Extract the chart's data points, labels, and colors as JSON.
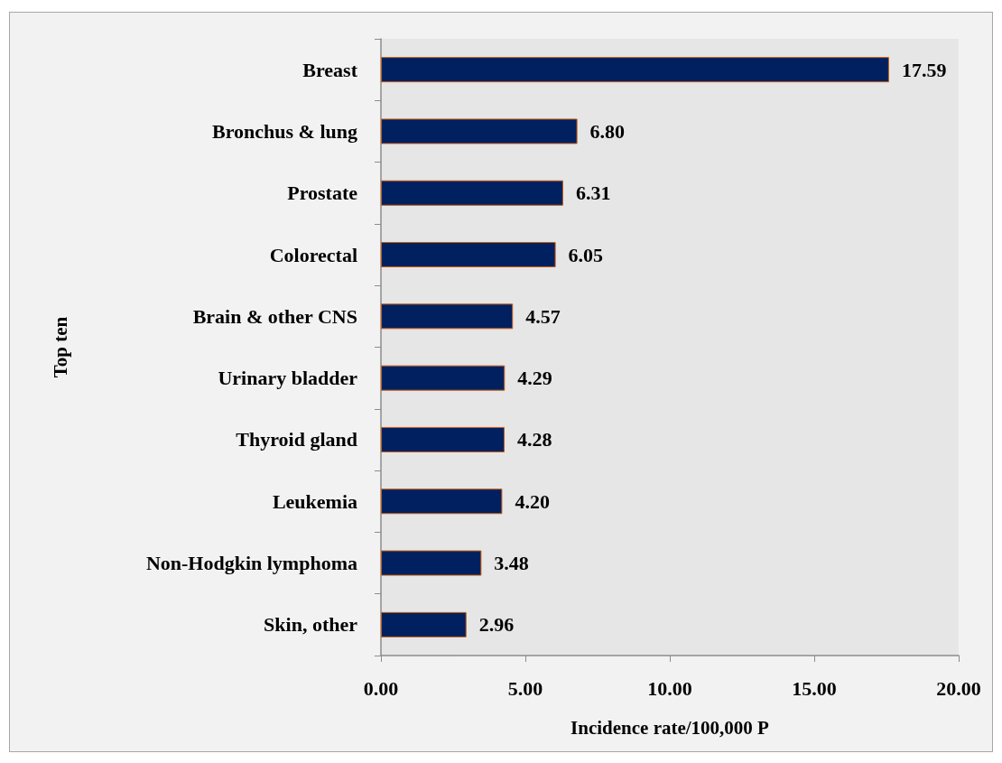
{
  "chart_data": {
    "type": "bar",
    "orientation": "horizontal",
    "categories": [
      "Breast",
      "Bronchus & lung",
      "Prostate",
      "Colorectal",
      "Brain & other CNS",
      "Urinary bladder",
      "Thyroid gland",
      "Leukemia",
      "Non-Hodgkin lymphoma",
      "Skin, other"
    ],
    "values": [
      17.59,
      6.8,
      6.31,
      6.05,
      4.57,
      4.29,
      4.28,
      4.2,
      3.48,
      2.96
    ],
    "value_labels": [
      "17.59",
      "6.80",
      "6.31",
      "6.05",
      "4.57",
      "4.29",
      "4.28",
      "4.20",
      "3.48",
      "2.96"
    ],
    "color": "#002060",
    "xlabel": "Incidence rate/100,000 P",
    "ylabel": "Top ten",
    "xlim": [
      0,
      20
    ],
    "xticks": [
      {
        "value": 0,
        "label": "0.00"
      },
      {
        "value": 5,
        "label": "5.00"
      },
      {
        "value": 10,
        "label": "10.00"
      },
      {
        "value": 15,
        "label": "15.00"
      },
      {
        "value": 20,
        "label": "20.00"
      }
    ],
    "grid": false
  }
}
